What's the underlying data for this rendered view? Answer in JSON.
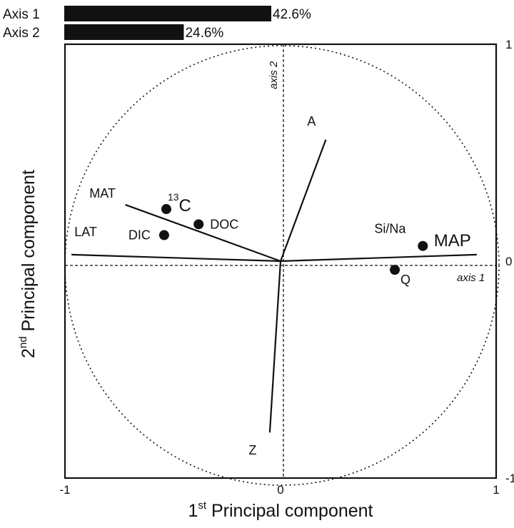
{
  "chart_data": {
    "type": "scatter",
    "title": "",
    "xlabel_main": "1",
    "xlabel_sup": "st",
    "xlabel_rest": " Principal component",
    "ylabel_main": "2",
    "ylabel_sup": "nd",
    "ylabel_rest": " Principal component",
    "xlim": [
      -1,
      1
    ],
    "ylim": [
      -1,
      1
    ],
    "x_ticks": [
      {
        "value": -1,
        "label": "-1"
      },
      {
        "value": 0,
        "label": "0"
      },
      {
        "value": 1,
        "label": "1"
      }
    ],
    "y_ticks": [
      {
        "value": 1,
        "label": "1"
      },
      {
        "value": 0,
        "label": "0"
      },
      {
        "value": -1,
        "label": "-1"
      }
    ],
    "variance_bars": [
      {
        "label": "Axis 1",
        "value": 42.6,
        "value_label": "42.6%"
      },
      {
        "label": "Axis 2",
        "value": 24.6,
        "value_label": "24.6%"
      }
    ],
    "axis_labels_inside": {
      "axis1": "axis 1",
      "axis2": "axis 2"
    },
    "loadings": [
      {
        "name": "MAP",
        "x": 0.91,
        "y": 0.03
      },
      {
        "name": "A",
        "x": 0.21,
        "y": 0.56
      },
      {
        "name": "MAT",
        "x": -0.72,
        "y": 0.26
      },
      {
        "name": "LAT",
        "x": -0.97,
        "y": 0.03
      },
      {
        "name": "Z",
        "x": -0.05,
        "y": -0.79
      }
    ],
    "points": [
      {
        "name": "13C",
        "sup": "13",
        "main": "C",
        "x": -0.53,
        "y": 0.24
      },
      {
        "name": "DOC",
        "x": -0.38,
        "y": 0.17
      },
      {
        "name": "DIC",
        "x": -0.54,
        "y": 0.12
      },
      {
        "name": "Si/Na",
        "x": 0.66,
        "y": 0.07
      },
      {
        "name": "Q",
        "x": 0.53,
        "y": -0.04
      }
    ],
    "colors": {
      "ink": "#111111",
      "background": "#ffffff"
    }
  }
}
